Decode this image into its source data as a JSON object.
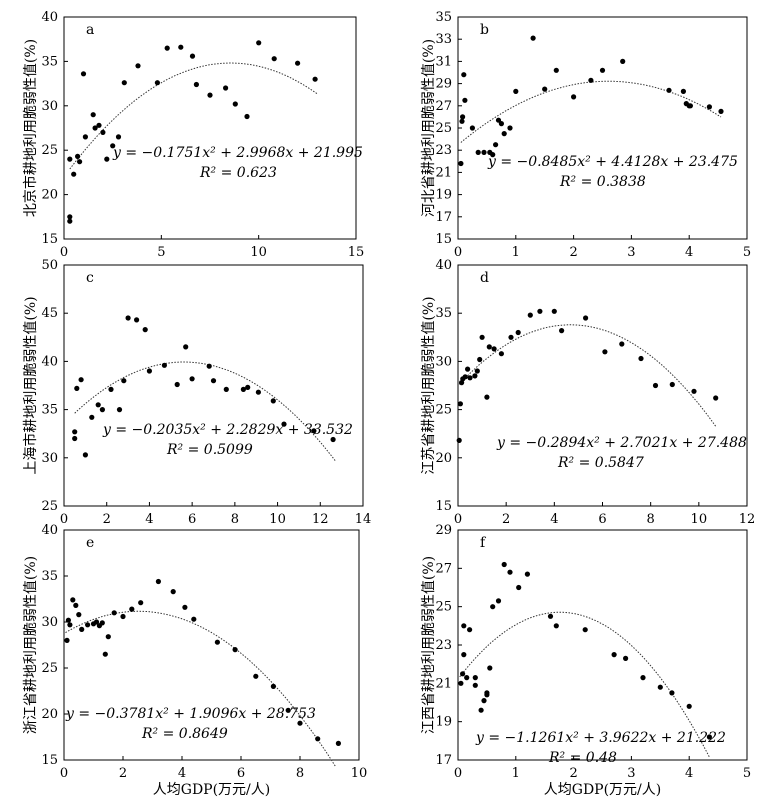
{
  "figure": {
    "xlabel_bottom": "人均GDP(万元/人)"
  },
  "chart_data": [
    {
      "id": "a",
      "type": "scatter",
      "panel_label": "a",
      "ylabel": "北京市耕地利用脆弱性值(%)",
      "xlim": [
        0,
        15
      ],
      "ylim": [
        15,
        40
      ],
      "xticks": [
        "0",
        "5",
        "10",
        "15"
      ],
      "yticks": [
        "15",
        "20",
        "25",
        "30",
        "35",
        "40"
      ],
      "xlabel": "",
      "equation": "y = −0.1751x² + 2.9968x + 21.995",
      "r2_text": "R² = 0.623",
      "fit": {
        "a": -0.1751,
        "b": 2.9968,
        "c": 21.995,
        "xmin": 0.3,
        "xmax": 13
      },
      "points": [
        [
          0.3,
          17
        ],
        [
          0.3,
          17.5
        ],
        [
          0.3,
          24
        ],
        [
          0.5,
          22.3
        ],
        [
          0.7,
          24.3
        ],
        [
          0.8,
          23.7
        ],
        [
          1,
          33.6
        ],
        [
          1.1,
          26.5
        ],
        [
          1.5,
          29
        ],
        [
          1.6,
          27.5
        ],
        [
          1.8,
          27.8
        ],
        [
          2,
          27
        ],
        [
          2.2,
          24
        ],
        [
          2.5,
          25.5
        ],
        [
          2.8,
          26.5
        ],
        [
          3.1,
          32.6
        ],
        [
          3.8,
          34.5
        ],
        [
          4.8,
          32.6
        ],
        [
          5.3,
          36.5
        ],
        [
          6,
          36.6
        ],
        [
          6.6,
          35.6
        ],
        [
          6.8,
          32.4
        ],
        [
          7.5,
          31.2
        ],
        [
          8.3,
          32
        ],
        [
          8.8,
          30.2
        ],
        [
          9.4,
          28.8
        ],
        [
          10,
          37.1
        ],
        [
          10.8,
          35.3
        ],
        [
          12,
          34.8
        ],
        [
          12.9,
          33
        ]
      ]
    },
    {
      "id": "b",
      "type": "scatter",
      "panel_label": "b",
      "ylabel": "河北省耕地利用脆弱性值(%)",
      "xlim": [
        0,
        5
      ],
      "ylim": [
        15,
        35
      ],
      "xticks": [
        "0",
        "1",
        "2",
        "3",
        "4",
        "5"
      ],
      "yticks": [
        "15",
        "17",
        "19",
        "21",
        "23",
        "25",
        "27",
        "29",
        "31",
        "33",
        "35"
      ],
      "xlabel": "",
      "equation": "y = −0.8485x² +  4.4128x + 23.475",
      "r2_text": "R² = 0.3838",
      "fit": {
        "a": -0.8485,
        "b": 4.4128,
        "c": 23.475,
        "xmin": 0.05,
        "xmax": 4.55
      },
      "points": [
        [
          0.05,
          21.8
        ],
        [
          0.07,
          25.6
        ],
        [
          0.08,
          26
        ],
        [
          0.12,
          27.5
        ],
        [
          0.1,
          29.8
        ],
        [
          0.25,
          25
        ],
        [
          0.35,
          22.8
        ],
        [
          0.45,
          22.8
        ],
        [
          0.55,
          22.8
        ],
        [
          0.6,
          22.6
        ],
        [
          0.65,
          23.5
        ],
        [
          0.7,
          25.7
        ],
        [
          0.75,
          25.4
        ],
        [
          0.8,
          24.5
        ],
        [
          0.9,
          25
        ],
        [
          1,
          28.3
        ],
        [
          1.3,
          33.1
        ],
        [
          1.5,
          28.5
        ],
        [
          1.7,
          30.2
        ],
        [
          2,
          27.8
        ],
        [
          2.3,
          29.3
        ],
        [
          2.5,
          30.2
        ],
        [
          2.85,
          31
        ],
        [
          3.65,
          28.4
        ],
        [
          3.9,
          28.3
        ],
        [
          3.95,
          27.2
        ],
        [
          4,
          27
        ],
        [
          4.02,
          27
        ],
        [
          4.35,
          26.9
        ],
        [
          4.55,
          26.5
        ]
      ]
    },
    {
      "id": "c",
      "type": "scatter",
      "panel_label": "c",
      "ylabel": "上海市耕地利用脆弱性值(%)",
      "xlim": [
        0,
        14
      ],
      "ylim": [
        25,
        50
      ],
      "xticks": [
        "0",
        "2",
        "4",
        "6",
        "8",
        "10",
        "12",
        "14"
      ],
      "yticks": [
        "25",
        "30",
        "35",
        "40",
        "45",
        "50"
      ],
      "xlabel": "",
      "equation": "y = −0.2035x² + 2.2829x + 33.532",
      "r2_text": "R² = 0.5099",
      "fit": {
        "a": -0.2035,
        "b": 2.2829,
        "c": 33.532,
        "xmin": 0.5,
        "xmax": 12.7
      },
      "points": [
        [
          0.5,
          32
        ],
        [
          0.5,
          32.7
        ],
        [
          0.6,
          37.2
        ],
        [
          0.8,
          38.1
        ],
        [
          1,
          30.3
        ],
        [
          1.3,
          34.2
        ],
        [
          1.6,
          35.5
        ],
        [
          1.8,
          35
        ],
        [
          2.2,
          37.1
        ],
        [
          2.6,
          35
        ],
        [
          2.8,
          38
        ],
        [
          3,
          44.5
        ],
        [
          3.4,
          44.3
        ],
        [
          3.8,
          43.3
        ],
        [
          4,
          39
        ],
        [
          4.7,
          39.6
        ],
        [
          5.3,
          37.6
        ],
        [
          5.7,
          41.5
        ],
        [
          6,
          38.2
        ],
        [
          6.8,
          39.5
        ],
        [
          7,
          38
        ],
        [
          7.6,
          37.1
        ],
        [
          8.4,
          37.1
        ],
        [
          8.6,
          37.3
        ],
        [
          9.1,
          36.8
        ],
        [
          9.8,
          35.9
        ],
        [
          10.3,
          33.5
        ],
        [
          11.7,
          32.8
        ],
        [
          12.6,
          31.9
        ]
      ]
    },
    {
      "id": "d",
      "type": "scatter",
      "panel_label": "d",
      "ylabel": "江苏省耕地利用脆弱性值(%)",
      "xlim": [
        0,
        12
      ],
      "ylim": [
        15,
        40
      ],
      "xticks": [
        "0",
        "2",
        "4",
        "6",
        "8",
        "10",
        "12"
      ],
      "yticks": [
        "15",
        "20",
        "25",
        "30",
        "35",
        "40"
      ],
      "xlabel": "",
      "equation": "y = −0.2894x² + 2.7021x + 27.488",
      "r2_text": "R² = 0.5847",
      "fit": {
        "a": -0.2894,
        "b": 2.7021,
        "c": 27.488,
        "xmin": 0.05,
        "xmax": 10.7
      },
      "points": [
        [
          0.05,
          21.8
        ],
        [
          0.1,
          25.6
        ],
        [
          0.15,
          27.8
        ],
        [
          0.2,
          28.2
        ],
        [
          0.3,
          28.4
        ],
        [
          0.4,
          29.2
        ],
        [
          0.5,
          28.3
        ],
        [
          0.7,
          28.5
        ],
        [
          0.8,
          29
        ],
        [
          0.9,
          30.2
        ],
        [
          1,
          32.5
        ],
        [
          1.2,
          26.3
        ],
        [
          1.3,
          31.5
        ],
        [
          1.5,
          31.3
        ],
        [
          1.8,
          30.8
        ],
        [
          2.2,
          32.5
        ],
        [
          2.5,
          33
        ],
        [
          3,
          34.8
        ],
        [
          3.4,
          35.2
        ],
        [
          4,
          35.2
        ],
        [
          4.3,
          33.2
        ],
        [
          5.3,
          34.5
        ],
        [
          6.1,
          31
        ],
        [
          6.8,
          31.8
        ],
        [
          7.6,
          30.3
        ],
        [
          8.2,
          27.5
        ],
        [
          8.9,
          27.6
        ],
        [
          9.8,
          26.9
        ],
        [
          10.7,
          26.2
        ]
      ]
    },
    {
      "id": "e",
      "type": "scatter",
      "panel_label": "e",
      "ylabel": "浙江省耕地利用脆弱性值(%)",
      "xlim": [
        0,
        10
      ],
      "ylim": [
        15,
        40
      ],
      "xticks": [
        "0",
        "2",
        "4",
        "6",
        "8",
        "10"
      ],
      "yticks": [
        "15",
        "20",
        "25",
        "30",
        "35",
        "40"
      ],
      "xlabel": "人均GDP(万元/人)",
      "equation": "y = −0.3781x² + 1.9096x + 28.753",
      "r2_text": "R² = 0.8649",
      "fit": {
        "a": -0.3781,
        "b": 1.9096,
        "c": 28.753,
        "xmin": 0.05,
        "xmax": 9.2
      },
      "points": [
        [
          0.1,
          28
        ],
        [
          0.15,
          30.2
        ],
        [
          0.2,
          29.7
        ],
        [
          0.3,
          32.4
        ],
        [
          0.4,
          31.8
        ],
        [
          0.5,
          30.8
        ],
        [
          0.6,
          29.2
        ],
        [
          0.8,
          29.7
        ],
        [
          1,
          29.8
        ],
        [
          1.1,
          30
        ],
        [
          1.2,
          29.6
        ],
        [
          1.3,
          29.9
        ],
        [
          1.4,
          26.5
        ],
        [
          1.5,
          28.4
        ],
        [
          1.7,
          31
        ],
        [
          2,
          30.6
        ],
        [
          2.3,
          31.4
        ],
        [
          2.6,
          32.1
        ],
        [
          3.2,
          34.4
        ],
        [
          3.7,
          33.3
        ],
        [
          4.1,
          31.6
        ],
        [
          4.4,
          30.3
        ],
        [
          5.2,
          27.8
        ],
        [
          5.8,
          27
        ],
        [
          6.5,
          24.1
        ],
        [
          7.1,
          23
        ],
        [
          7.6,
          20.4
        ],
        [
          8,
          19
        ],
        [
          8.6,
          17.3
        ],
        [
          9.3,
          16.8
        ]
      ]
    },
    {
      "id": "f",
      "type": "scatter",
      "panel_label": "f",
      "ylabel": "江西省耕地利用脆弱性值(%)",
      "xlim": [
        0,
        5
      ],
      "ylim": [
        17,
        29
      ],
      "xticks": [
        "0",
        "1",
        "2",
        "3",
        "4",
        "5"
      ],
      "yticks": [
        "17",
        "19",
        "21",
        "23",
        "25",
        "27",
        "29"
      ],
      "xlabel": "人均GDP(万元/人)",
      "equation": "y = −1.1261x² + 3.9622x + 21.222",
      "r2_text": "R² = 0.48",
      "fit": {
        "a": -1.1261,
        "b": 3.9622,
        "c": 21.222,
        "xmin": 0.03,
        "xmax": 4.35
      },
      "points": [
        [
          0.05,
          21
        ],
        [
          0.08,
          21.5
        ],
        [
          0.1,
          22.5
        ],
        [
          0.1,
          24
        ],
        [
          0.15,
          21.3
        ],
        [
          0.2,
          23.8
        ],
        [
          0.3,
          20.9
        ],
        [
          0.3,
          21.3
        ],
        [
          0.4,
          19.6
        ],
        [
          0.45,
          20.1
        ],
        [
          0.5,
          20.5
        ],
        [
          0.5,
          20.4
        ],
        [
          0.55,
          21.8
        ],
        [
          0.6,
          25
        ],
        [
          0.7,
          25.3
        ],
        [
          0.8,
          27.2
        ],
        [
          0.9,
          26.8
        ],
        [
          1.05,
          26
        ],
        [
          1.2,
          26.7
        ],
        [
          1.6,
          24.5
        ],
        [
          1.7,
          24
        ],
        [
          2.2,
          23.8
        ],
        [
          2.7,
          22.5
        ],
        [
          2.9,
          22.3
        ],
        [
          3.2,
          21.3
        ],
        [
          3.5,
          20.8
        ],
        [
          3.7,
          20.5
        ],
        [
          4,
          19.8
        ],
        [
          4.35,
          18.2
        ]
      ]
    }
  ]
}
